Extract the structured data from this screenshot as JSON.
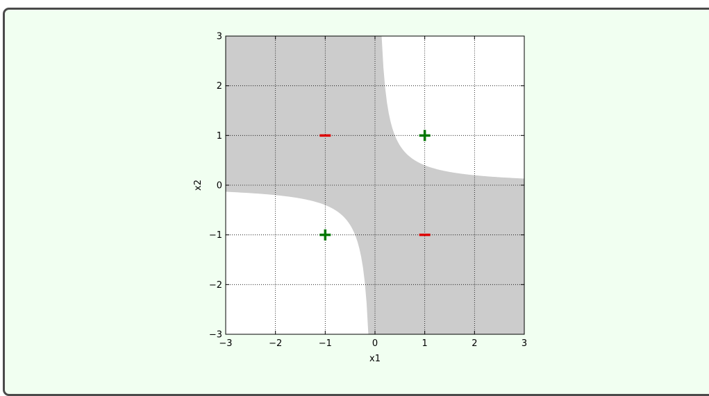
{
  "chart_data": {
    "type": "scatter",
    "title": "",
    "xlabel": "x1",
    "ylabel": "x2",
    "xlim": [
      -3,
      3
    ],
    "ylim": [
      -3,
      3
    ],
    "xticks": [
      -3,
      -2,
      -1,
      0,
      1,
      2,
      3
    ],
    "yticks": [
      -3,
      -2,
      -1,
      0,
      1,
      2,
      3
    ],
    "grid": true,
    "region_color": "#cccccc",
    "region": "shaded where x1 * x2 < 0.4 (approximate decision region)",
    "points": [
      {
        "x": -1,
        "y": 1,
        "marker": "minus",
        "color": "#dd0000"
      },
      {
        "x": 1,
        "y": 1,
        "marker": "plus",
        "color": "#007700"
      },
      {
        "x": -1,
        "y": -1,
        "marker": "plus",
        "color": "#007700"
      },
      {
        "x": 1,
        "y": -1,
        "marker": "minus",
        "color": "#dd0000"
      }
    ]
  }
}
